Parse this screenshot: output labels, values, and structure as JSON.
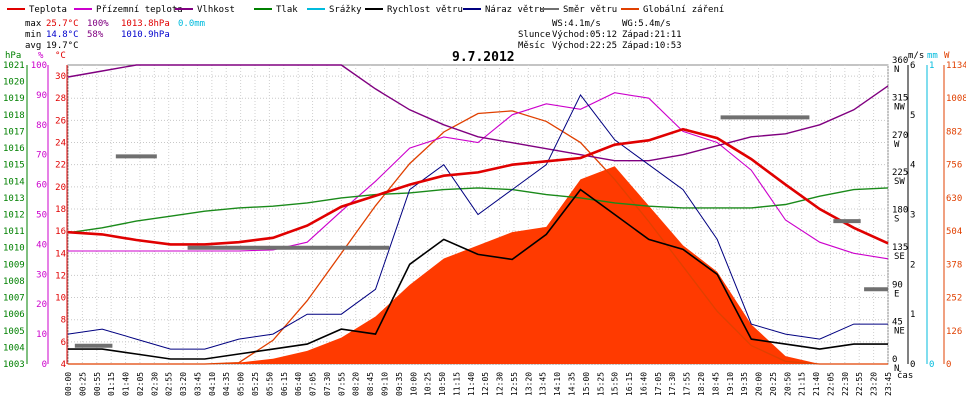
{
  "legend": [
    {
      "label": "Teplota",
      "color": "#e00000"
    },
    {
      "label": "Přízemní teplota",
      "color": "#cc00cc"
    },
    {
      "label": "Vlhkost",
      "color": "#800080"
    },
    {
      "label": "Tlak",
      "color": "#008000"
    },
    {
      "label": "Srážky",
      "color": "#00bbdd"
    },
    {
      "label": "Rychlost větru",
      "color": "#000000"
    },
    {
      "label": "Náraz větru",
      "color": "#000080"
    },
    {
      "label": "Směr větru",
      "color": "#707070"
    },
    {
      "label": "Globální záření",
      "color": "#e04000"
    }
  ],
  "stats": {
    "max_label": "max",
    "max_temp": "25.7°C",
    "max_hum": "100%",
    "max_press": "1013.8hPa",
    "rain": "0.0mm",
    "min_label": "min",
    "min_temp": "14.8°C",
    "min_hum": "58%",
    "min_press": "1010.9hPa",
    "avg_label": "avg",
    "avg_temp": "19.7°C",
    "ws": "WS:4.1m/s",
    "wg": "WG:5.4m/s",
    "slunce_label": "Slunce",
    "slunce_rise": "Východ:05:12",
    "slunce_set": "Západ:21:11",
    "mesic_label": "Měsíc",
    "mesic_rise": "Východ:22:25",
    "mesic_set": "Západ:10:53"
  },
  "axis_units": {
    "hpa": "hPa",
    "pct": "%",
    "degc": "°C",
    "ms": "m/s",
    "mm": "mm",
    "w": "W",
    "x": "čas"
  },
  "chart_data": {
    "type": "line",
    "title": "9.7.2012",
    "x_ticks": [
      "00:00",
      "00:25",
      "00:55",
      "01:15",
      "01:40",
      "02:05",
      "02:30",
      "02:55",
      "03:20",
      "03:45",
      "04:10",
      "04:35",
      "05:00",
      "05:25",
      "05:50",
      "06:15",
      "06:40",
      "07:05",
      "07:30",
      "07:55",
      "08:20",
      "08:45",
      "09:10",
      "09:35",
      "10:00",
      "10:25",
      "10:50",
      "11:15",
      "11:40",
      "12:05",
      "12:30",
      "12:55",
      "13:20",
      "13:45",
      "14:10",
      "14:35",
      "15:00",
      "15:25",
      "15:50",
      "16:15",
      "16:40",
      "17:05",
      "17:30",
      "17:55",
      "18:20",
      "18:45",
      "19:10",
      "19:35",
      "20:00",
      "20:25",
      "20:50",
      "21:15",
      "21:40",
      "22:05",
      "22:30",
      "22:55",
      "23:20",
      "23:45"
    ],
    "axes": {
      "pressure_hpa": {
        "ticks": [
          1003,
          1004,
          1005,
          1006,
          1007,
          1008,
          1009,
          1010,
          1011,
          1012,
          1013,
          1014,
          1015,
          1016,
          1017,
          1018,
          1019,
          1020,
          1021
        ],
        "color": "#008000"
      },
      "humidity_pct": {
        "ticks": [
          0,
          10,
          20,
          30,
          40,
          50,
          60,
          70,
          80,
          90,
          100
        ],
        "color": "#cc00cc"
      },
      "temp_c": {
        "ticks": [
          4,
          6,
          8,
          10,
          12,
          14,
          16,
          18,
          20,
          22,
          24,
          26,
          28,
          30
        ],
        "color": "#e00000"
      },
      "wind_dir": {
        "ticks": [
          "0 N",
          "45 NE",
          "90 E",
          "135 SE",
          "180 S",
          "225 SW",
          "270 W",
          "315 NW",
          "360 N"
        ]
      },
      "wind_ms": {
        "ticks": [
          0,
          1,
          2,
          3,
          4,
          5,
          6
        ]
      },
      "rain_mm": {
        "ticks": [
          0,
          1
        ]
      },
      "radiation_w": {
        "ticks": [
          0,
          126,
          252,
          378,
          504,
          630,
          756,
          882,
          1008,
          1134
        ]
      }
    },
    "series": [
      {
        "name": "Teplota",
        "unit": "°C",
        "hours": [
          0,
          1,
          2,
          3,
          4,
          5,
          6,
          7,
          8,
          9,
          10,
          11,
          12,
          13,
          14,
          15,
          16,
          17,
          18,
          19,
          20,
          21,
          22,
          23,
          24
        ],
        "values": [
          15.9,
          15.7,
          15.2,
          14.8,
          14.8,
          15.0,
          15.4,
          16.5,
          18.2,
          19.2,
          20.2,
          21.0,
          21.3,
          22.0,
          22.3,
          22.6,
          23.8,
          24.2,
          25.2,
          24.4,
          22.5,
          20.2,
          18.0,
          16.3,
          14.9
        ]
      },
      {
        "name": "Přízemní teplota",
        "unit": "°C",
        "hours": [
          0,
          1,
          2,
          3,
          4,
          5,
          6,
          7,
          8,
          9,
          10,
          11,
          12,
          13,
          14,
          15,
          16,
          17,
          18,
          19,
          20,
          21,
          22,
          23,
          24
        ],
        "values": [
          14.2,
          14.2,
          14.2,
          14.2,
          14.2,
          14.2,
          14.3,
          15.0,
          17.8,
          20.5,
          23.5,
          24.5,
          24.0,
          26.5,
          27.5,
          27.0,
          28.5,
          28.0,
          25.0,
          24.0,
          21.5,
          17.0,
          15.0,
          14.0,
          13.5
        ]
      },
      {
        "name": "Vlhkost",
        "unit": "%",
        "hours": [
          0,
          1,
          2,
          3,
          4,
          5,
          6,
          7,
          8,
          9,
          10,
          11,
          12,
          13,
          14,
          15,
          16,
          17,
          18,
          19,
          20,
          21,
          22,
          23,
          24
        ],
        "values": [
          96,
          98,
          100,
          100,
          100,
          100,
          100,
          100,
          100,
          92,
          85,
          80,
          76,
          74,
          72,
          70,
          68,
          68,
          70,
          73,
          76,
          77,
          80,
          85,
          93
        ]
      },
      {
        "name": "Tlak",
        "unit": "hPa",
        "hours": [
          0,
          1,
          2,
          3,
          4,
          5,
          6,
          7,
          8,
          9,
          10,
          11,
          12,
          13,
          14,
          15,
          16,
          17,
          18,
          19,
          20,
          21,
          22,
          23,
          24
        ],
        "values": [
          1010.9,
          1011.2,
          1011.6,
          1011.9,
          1012.2,
          1012.4,
          1012.5,
          1012.7,
          1013.0,
          1013.2,
          1013.3,
          1013.5,
          1013.6,
          1013.5,
          1013.2,
          1013.0,
          1012.7,
          1012.5,
          1012.4,
          1012.4,
          1012.4,
          1012.6,
          1013.1,
          1013.5,
          1013.6
        ]
      },
      {
        "name": "Rychlost větru",
        "unit": "m/s",
        "hours": [
          0,
          1,
          2,
          3,
          4,
          5,
          6,
          7,
          8,
          9,
          10,
          11,
          12,
          13,
          14,
          15,
          16,
          17,
          18,
          19,
          20,
          21,
          22,
          23,
          24
        ],
        "values": [
          0.3,
          0.3,
          0.2,
          0.1,
          0.1,
          0.2,
          0.3,
          0.4,
          0.7,
          0.6,
          2.0,
          2.5,
          2.2,
          2.1,
          2.6,
          3.5,
          3.0,
          2.5,
          2.3,
          1.8,
          0.5,
          0.4,
          0.3,
          0.4,
          0.4
        ]
      },
      {
        "name": "Náraz větru",
        "unit": "m/s",
        "hours": [
          0,
          1,
          2,
          3,
          4,
          5,
          6,
          7,
          8,
          9,
          10,
          11,
          12,
          13,
          14,
          15,
          16,
          17,
          18,
          19,
          20,
          21,
          22,
          23,
          24
        ],
        "values": [
          0.6,
          0.7,
          0.5,
          0.3,
          0.3,
          0.5,
          0.6,
          1.0,
          1.0,
          1.5,
          3.5,
          4.0,
          3.0,
          3.5,
          4.0,
          5.4,
          4.5,
          4.0,
          3.5,
          2.5,
          0.8,
          0.6,
          0.5,
          0.8,
          0.8
        ]
      },
      {
        "name": "Globální záření",
        "unit": "W",
        "hours": [
          0,
          1,
          2,
          3,
          4,
          5,
          6,
          7,
          8,
          9,
          10,
          11,
          12,
          13,
          14,
          15,
          16,
          17,
          18,
          19,
          20,
          21,
          22,
          23,
          24
        ],
        "values": [
          0,
          0,
          0,
          0,
          0,
          5,
          20,
          50,
          100,
          180,
          300,
          400,
          450,
          500,
          520,
          700,
          750,
          600,
          450,
          350,
          150,
          30,
          0,
          0,
          0
        ],
        "theoretical_max": [
          0,
          0,
          0,
          0,
          0,
          5,
          90,
          240,
          420,
          600,
          760,
          880,
          950,
          960,
          920,
          840,
          700,
          540,
          370,
          200,
          70,
          10,
          0,
          0,
          0
        ]
      }
    ],
    "wind_dir_segments": [
      {
        "start_h": 0.2,
        "end_h": 1.3,
        "deg": 22
      },
      {
        "start_h": 1.4,
        "end_h": 2.6,
        "deg": 250
      },
      {
        "start_h": 3.5,
        "end_h": 9.4,
        "deg": 140
      },
      {
        "start_h": 19.1,
        "end_h": 21.7,
        "deg": 297
      },
      {
        "start_h": 22.4,
        "end_h": 23.2,
        "deg": 172
      },
      {
        "start_h": 23.3,
        "end_h": 24.0,
        "deg": 90
      }
    ],
    "ylim": {
      "temp_c": [
        4,
        31
      ],
      "humidity_pct": [
        0,
        100
      ],
      "pressure_hpa": [
        1003,
        1021
      ],
      "wind_ms": [
        0,
        6
      ],
      "radiation_w": [
        0,
        1134
      ]
    }
  }
}
